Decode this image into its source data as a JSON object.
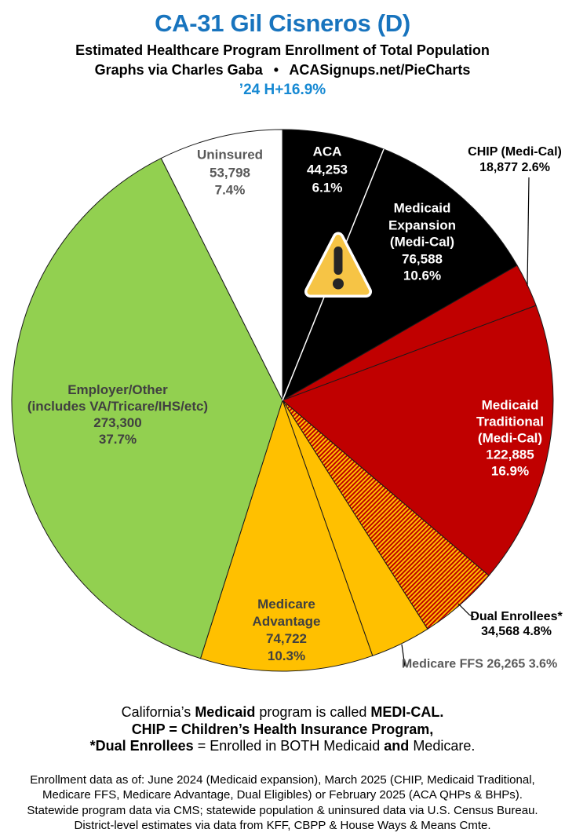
{
  "header": {
    "title": "CA-31 Gil Cisneros (D)",
    "subtitle": "Estimated Healthcare Program Enrollment of Total Population",
    "credit": "Graphs via Charles Gaba  •  ACASignups.net/PieCharts",
    "tagline": "’24 H+16.9%"
  },
  "colors": {
    "title_blue": "#1874BE",
    "tagline_blue": "#1689D3",
    "black": "#000000",
    "red": "#C00000",
    "amber": "#FFC000",
    "green": "#92D050",
    "white": "#FFFFFF",
    "gray_text": "#595959",
    "dark_gray_text": "#404040",
    "slice_outline": "#1A1A1A",
    "divider_white": "#FFFFFF"
  },
  "warning_icon": {
    "name": "warning-icon",
    "triangle_fill": "#F6C445",
    "outline": "#FFFFFF",
    "mark": "#262626"
  },
  "chart_data": {
    "type": "pie",
    "title": "Estimated Healthcare Program Enrollment of Total Population",
    "units": "people",
    "total_pct": 100.0,
    "start_angle_deg": 0,
    "direction": "clockwise-from-12-oclock",
    "legend": "labels on slices / external callouts",
    "hatch_colors": [
      "#C00000",
      "#FFC000"
    ],
    "slices": [
      {
        "key": "aca",
        "label": "ACA",
        "value": 44253,
        "value_display": "44,253",
        "pct": 6.1,
        "pct_display": "6.1%",
        "color": "#000000",
        "display_lines": [
          "ACA",
          "44,253",
          "6.1%"
        ]
      },
      {
        "key": "medicaid_expansion",
        "label": "Medicaid Expansion (Medi-Cal)",
        "value": 76588,
        "value_display": "76,588",
        "pct": 10.6,
        "pct_display": "10.6%",
        "color": "#000000",
        "display_lines": [
          "Medicaid",
          "Expansion",
          "(Medi-Cal)",
          "76,588",
          "10.6%"
        ]
      },
      {
        "key": "chip",
        "label": "CHIP (Medi-Cal)",
        "value": 18877,
        "value_display": "18,877",
        "pct": 2.6,
        "pct_display": "2.6%",
        "color": "#C00000",
        "display_lines": [
          "CHIP (Medi-Cal)",
          "18,877 2.6%"
        ]
      },
      {
        "key": "medicaid_traditional",
        "label": "Medicaid Traditional (Medi-Cal)",
        "value": 122885,
        "value_display": "122,885",
        "pct": 16.9,
        "pct_display": "16.9%",
        "color": "#C00000",
        "display_lines": [
          "Medicaid",
          "Traditional",
          "(Medi-Cal)",
          "122,885",
          "16.9%"
        ]
      },
      {
        "key": "dual_enrollees",
        "label": "Dual Enrollees*",
        "value": 34568,
        "value_display": "34,568",
        "pct": 4.8,
        "pct_display": "4.8%",
        "color": "hatch",
        "display_lines": [
          "Dual Enrollees*",
          "34,568 4.8%"
        ]
      },
      {
        "key": "medicare_ffs",
        "label": "Medicare FFS",
        "value": 26265,
        "value_display": "26,265",
        "pct": 3.6,
        "pct_display": "3.6%",
        "color": "#FFC000",
        "display_lines": [
          "Medicare FFS 26,265 3.6%"
        ]
      },
      {
        "key": "medicare_advantage",
        "label": "Medicare Advantage",
        "value": 74722,
        "value_display": "74,722",
        "pct": 10.3,
        "pct_display": "10.3%",
        "color": "#FFC000",
        "display_lines": [
          "Medicare",
          "Advantage",
          "74,722",
          "10.3%"
        ]
      },
      {
        "key": "employer_other",
        "label": "Employer/Other (includes VA/Tricare/IHS/etc)",
        "value": 273300,
        "value_display": "273,300",
        "pct": 37.7,
        "pct_display": "37.7%",
        "color": "#92D050",
        "display_lines": [
          "Employer/Other",
          "(includes VA/Tricare/IHS/etc)",
          "273,300",
          "37.7%"
        ]
      },
      {
        "key": "uninsured",
        "label": "Uninsured",
        "value": 53798,
        "value_display": "53,798",
        "pct": 7.4,
        "pct_display": "7.4%",
        "color": "#FFFFFF",
        "display_lines": [
          "Uninsured",
          "53,798",
          "7.4%"
        ]
      }
    ]
  },
  "footnote": {
    "lines": [
      {
        "segments": [
          {
            "t": "California’s ",
            "b": false
          },
          {
            "t": "Medicaid",
            "b": true
          },
          {
            "t": " program is called ",
            "b": false
          },
          {
            "t": "MEDI-CAL.",
            "b": true
          }
        ]
      },
      {
        "segments": [
          {
            "t": "CHIP = Children’s Health Insurance Program,",
            "b": true
          }
        ]
      },
      {
        "segments": [
          {
            "t": "*Dual Enrollees",
            "b": true
          },
          {
            "t": " = Enrolled in BOTH Medicaid ",
            "b": false
          },
          {
            "t": "and",
            "b": true
          },
          {
            "t": " Medicare.",
            "b": false
          }
        ]
      }
    ]
  },
  "source_notes": {
    "lines": [
      "Enrollment data as of: June 2024 (Medicaid expansion), March 2025 (CHIP, Medicaid Traditional,",
      "Medicare FFS, Medicare Advantage, Dual Eligibles) or February 2025 (ACA QHPs & BHPs).",
      "Statewide program data via CMS; statewide population & uninsured data via U.S. Census Bureau.",
      "District-level estimates via data from KFF, CBPP & House Ways & Means Cmte."
    ]
  }
}
